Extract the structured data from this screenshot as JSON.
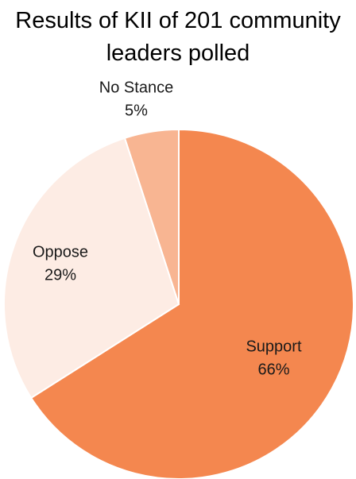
{
  "chart_data": {
    "type": "pie",
    "title_lines": [
      "Results of KII of 201 community",
      "leaders polled"
    ],
    "start_angle_deg": 0,
    "direction": "clockwise",
    "legend": "none",
    "slices": [
      {
        "label": "Support",
        "value": 66,
        "value_label": "66%",
        "color": "#f4874f"
      },
      {
        "label": "Oppose",
        "value": 29,
        "value_label": "29%",
        "color": "#fdece4"
      },
      {
        "label": "No Stance",
        "value": 5,
        "value_label": "5%",
        "color": "#f8b592"
      }
    ]
  }
}
